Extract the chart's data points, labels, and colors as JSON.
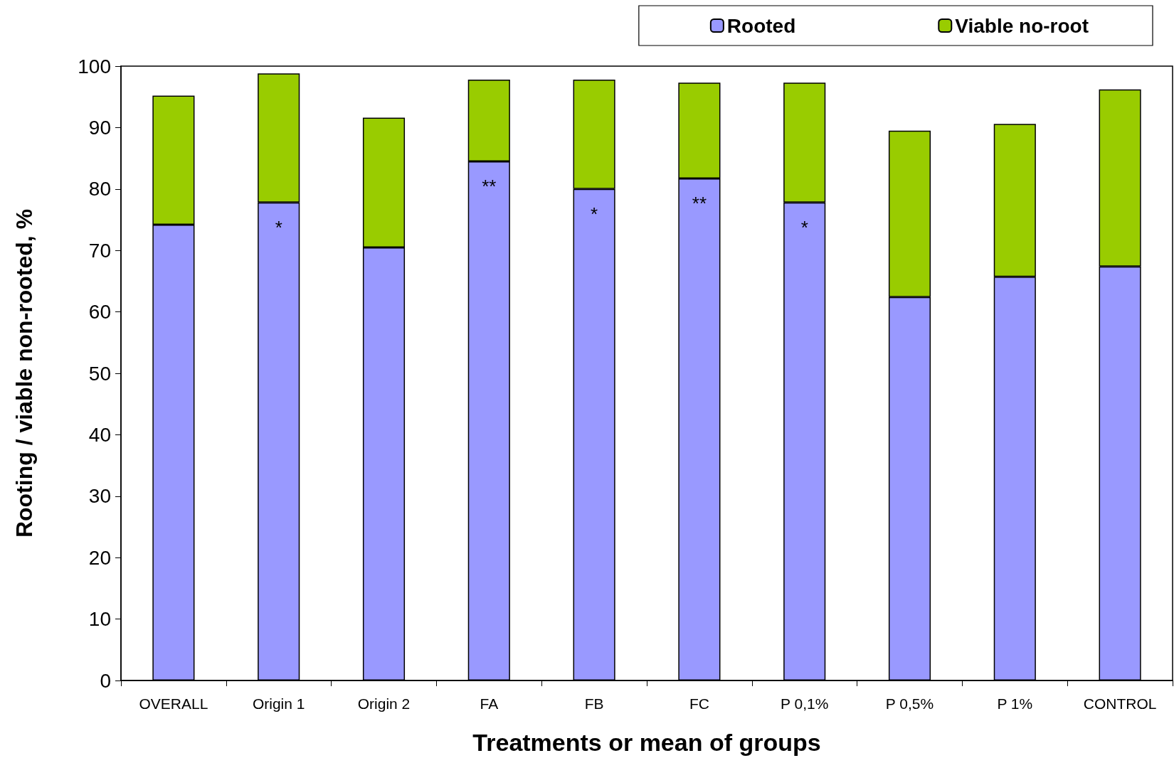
{
  "chart_data": {
    "type": "bar",
    "stacked": true,
    "xlabel": "Treatments or mean of groups",
    "ylabel": "Rooting / viable non-rooted, %",
    "categories": [
      "OVERALL",
      "Origin 1",
      "Origin 2",
      "FA",
      "FB",
      "FC",
      "P 0,1%",
      "P 0,5%",
      "P 1%",
      "CONTROL"
    ],
    "series": [
      {
        "name": "Rooted",
        "color": "#9999ff",
        "values": [
          74.2,
          77.8,
          70.5,
          84.5,
          80.0,
          81.7,
          77.8,
          62.4,
          65.7,
          67.4
        ]
      },
      {
        "name": "Viable no-root",
        "color": "#99cc00",
        "values": [
          21.0,
          21.0,
          21.1,
          13.3,
          17.8,
          15.6,
          19.5,
          27.1,
          24.9,
          28.8
        ]
      }
    ],
    "ylim": [
      0,
      100
    ],
    "yticks": [
      0,
      10,
      20,
      30,
      40,
      50,
      60,
      70,
      80,
      90,
      100
    ],
    "grid": false,
    "legend": "top right",
    "annotations": [
      {
        "text": "*",
        "x": "Origin 1",
        "y": 77.8
      },
      {
        "text": "**",
        "x": "FA",
        "y": 84.5
      },
      {
        "text": "*",
        "x": "FB",
        "y": 80.0
      },
      {
        "text": "**",
        "x": "FC",
        "y": 81.7
      },
      {
        "text": "*",
        "x": "P 0,1%",
        "y": 77.8
      }
    ]
  }
}
